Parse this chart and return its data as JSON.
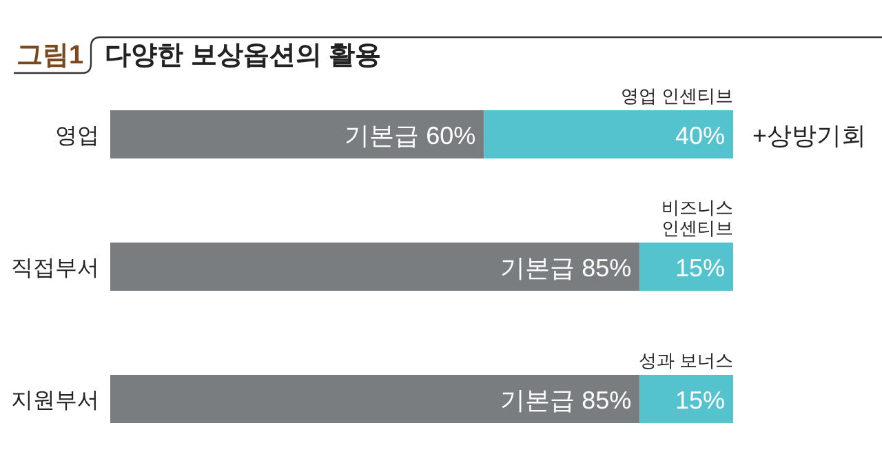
{
  "chart_data": {
    "type": "bar",
    "orientation": "horizontal",
    "stacked": true,
    "title": "다양한 보상옵션의 활용",
    "categories": [
      "영업",
      "직접부서",
      "지원부서"
    ],
    "series": [
      {
        "color": "#7a7d80",
        "values": [
          60,
          85,
          85
        ],
        "value_labels": [
          "기본급 60%",
          "기본급 85%",
          "기본급 85%"
        ]
      },
      {
        "color": "#55c3cd",
        "values": [
          40,
          15,
          15
        ],
        "value_labels": [
          "40%",
          "15%",
          "15%"
        ]
      }
    ],
    "annotations": [
      "그림1",
      "영업 인센티브",
      "+상방기회",
      "비즈니스\n인센티브",
      "성과 보너스"
    ]
  }
}
